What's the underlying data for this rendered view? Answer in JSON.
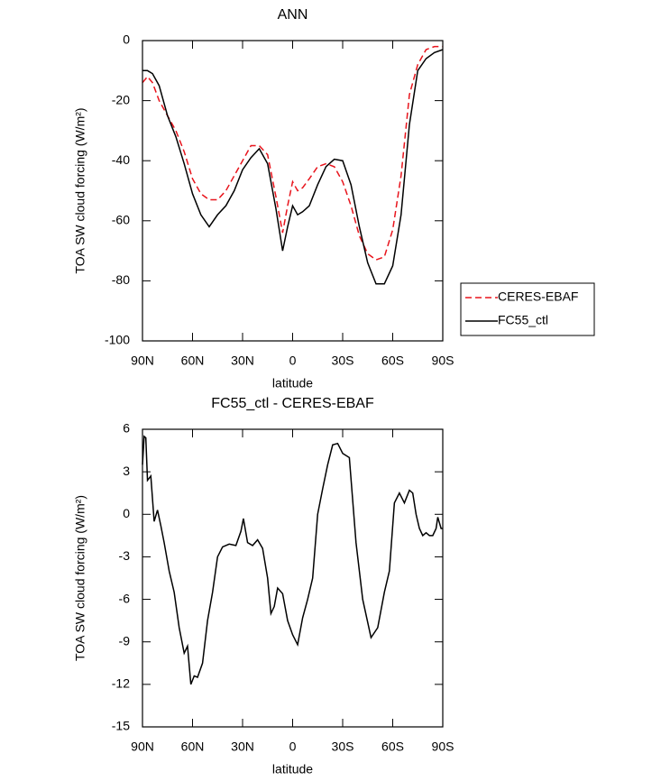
{
  "chart_data": [
    {
      "type": "line",
      "title": "ANN",
      "x_label": "latitude",
      "y_label": "TOA SW cloud forcing (W/m²)",
      "x": [
        90,
        87,
        84,
        80,
        75,
        70,
        65,
        60,
        55,
        50,
        45,
        40,
        35,
        30,
        25,
        20,
        15,
        10,
        6,
        3,
        0,
        -3,
        -6,
        -10,
        -15,
        -20,
        -25,
        -30,
        -35,
        -40,
        -45,
        -50,
        -55,
        -60,
        -65,
        -70,
        -75,
        -80,
        -85,
        -90
      ],
      "series": [
        {
          "name": "CERES-EBAF",
          "color": "#e8141c",
          "dash": true,
          "values": [
            -14,
            -12,
            -14,
            -20,
            -25,
            -30,
            -37,
            -46,
            -51,
            -53,
            -53,
            -50,
            -45,
            -40,
            -35,
            -35,
            -38,
            -52,
            -64,
            -55,
            -47,
            -50,
            -49,
            -46,
            -42,
            -41,
            -42,
            -47,
            -55,
            -65,
            -71,
            -73,
            -72,
            -63,
            -45,
            -18,
            -8,
            -3,
            -2,
            -2
          ]
        },
        {
          "name": "FC55_ctl",
          "color": "#000000",
          "dash": false,
          "values": [
            -10,
            -10,
            -11,
            -15,
            -25,
            -32,
            -41,
            -51,
            -58,
            -62,
            -58,
            -55,
            -50,
            -43,
            -39,
            -36,
            -41,
            -56,
            -70,
            -62,
            -55,
            -58,
            -57,
            -55,
            -48,
            -42,
            -39.5,
            -40,
            -48,
            -62,
            -74,
            -81,
            -81,
            -75,
            -58,
            -28,
            -10,
            -6,
            -4,
            -3
          ]
        }
      ],
      "xlim": [
        90,
        -90
      ],
      "xticks": [
        {
          "value": 90,
          "label": "90N"
        },
        {
          "value": 60,
          "label": "60N"
        },
        {
          "value": 30,
          "label": "30N"
        },
        0,
        {
          "value": -30,
          "label": "30S"
        },
        {
          "value": -60,
          "label": "60S"
        },
        {
          "value": -90,
          "label": "90S"
        }
      ],
      "ylim": [
        -100,
        0
      ],
      "yticks": [
        -100,
        -80,
        -60,
        -40,
        -20,
        0
      ],
      "legend": "right"
    },
    {
      "type": "line",
      "title": "FC55_ctl - CERES-EBAF",
      "x_label": "latitude",
      "y_label": "TOA SW cloud forcing (W/m²)",
      "x": [
        90,
        89,
        88,
        87,
        85,
        83,
        81,
        79,
        77,
        74,
        71,
        68,
        65,
        63,
        61,
        59,
        57,
        54,
        51,
        48,
        45,
        42,
        38,
        34,
        31,
        29.5,
        27,
        24,
        21,
        18,
        15,
        13,
        11,
        9,
        6,
        3,
        0,
        -3,
        -6,
        -9,
        -12,
        -15,
        -18,
        -21,
        -24,
        -27,
        -30,
        -34,
        -38,
        -42,
        -47,
        -51,
        -55,
        -58,
        -61,
        -64,
        -67,
        -70,
        -72,
        -74,
        -76,
        -78,
        -80,
        -82,
        -84,
        -86,
        -87,
        -89,
        -90
      ],
      "values": [
        3.5,
        5.5,
        5.4,
        2.4,
        2.7,
        -0.5,
        0.3,
        -0.8,
        -2,
        -4,
        -5.5,
        -8,
        -9.8,
        -9.3,
        -12,
        -11.4,
        -11.5,
        -10.5,
        -7.5,
        -5.5,
        -3,
        -2.3,
        -2.1,
        -2.2,
        -1.2,
        -0.3,
        -2,
        -2.2,
        -1.8,
        -2.4,
        -4.5,
        -7,
        -6.5,
        -5.2,
        -5.6,
        -7.5,
        -8.5,
        -9.2,
        -7.3,
        -6,
        -4.5,
        0,
        1.8,
        3.5,
        4.9,
        5,
        4.3,
        4,
        -2,
        -6,
        -8.7,
        -8,
        -5.5,
        -4,
        0.8,
        1.5,
        0.8,
        1.7,
        1.5,
        0,
        -1,
        -1.5,
        -1.3,
        -1.5,
        -1.5,
        -1,
        -0.2,
        -1,
        -1
      ],
      "color": "#000000",
      "xlim": [
        90,
        -90
      ],
      "xticks": [
        {
          "value": 90,
          "label": "90N"
        },
        {
          "value": 60,
          "label": "60N"
        },
        {
          "value": 30,
          "label": "30N"
        },
        0,
        {
          "value": -30,
          "label": "30S"
        },
        {
          "value": -60,
          "label": "60S"
        },
        {
          "value": -90,
          "label": "90S"
        }
      ],
      "ylim": [
        -15,
        6
      ],
      "yticks": [
        -15,
        -12,
        -9,
        -6,
        -3,
        0,
        3,
        6
      ]
    }
  ]
}
